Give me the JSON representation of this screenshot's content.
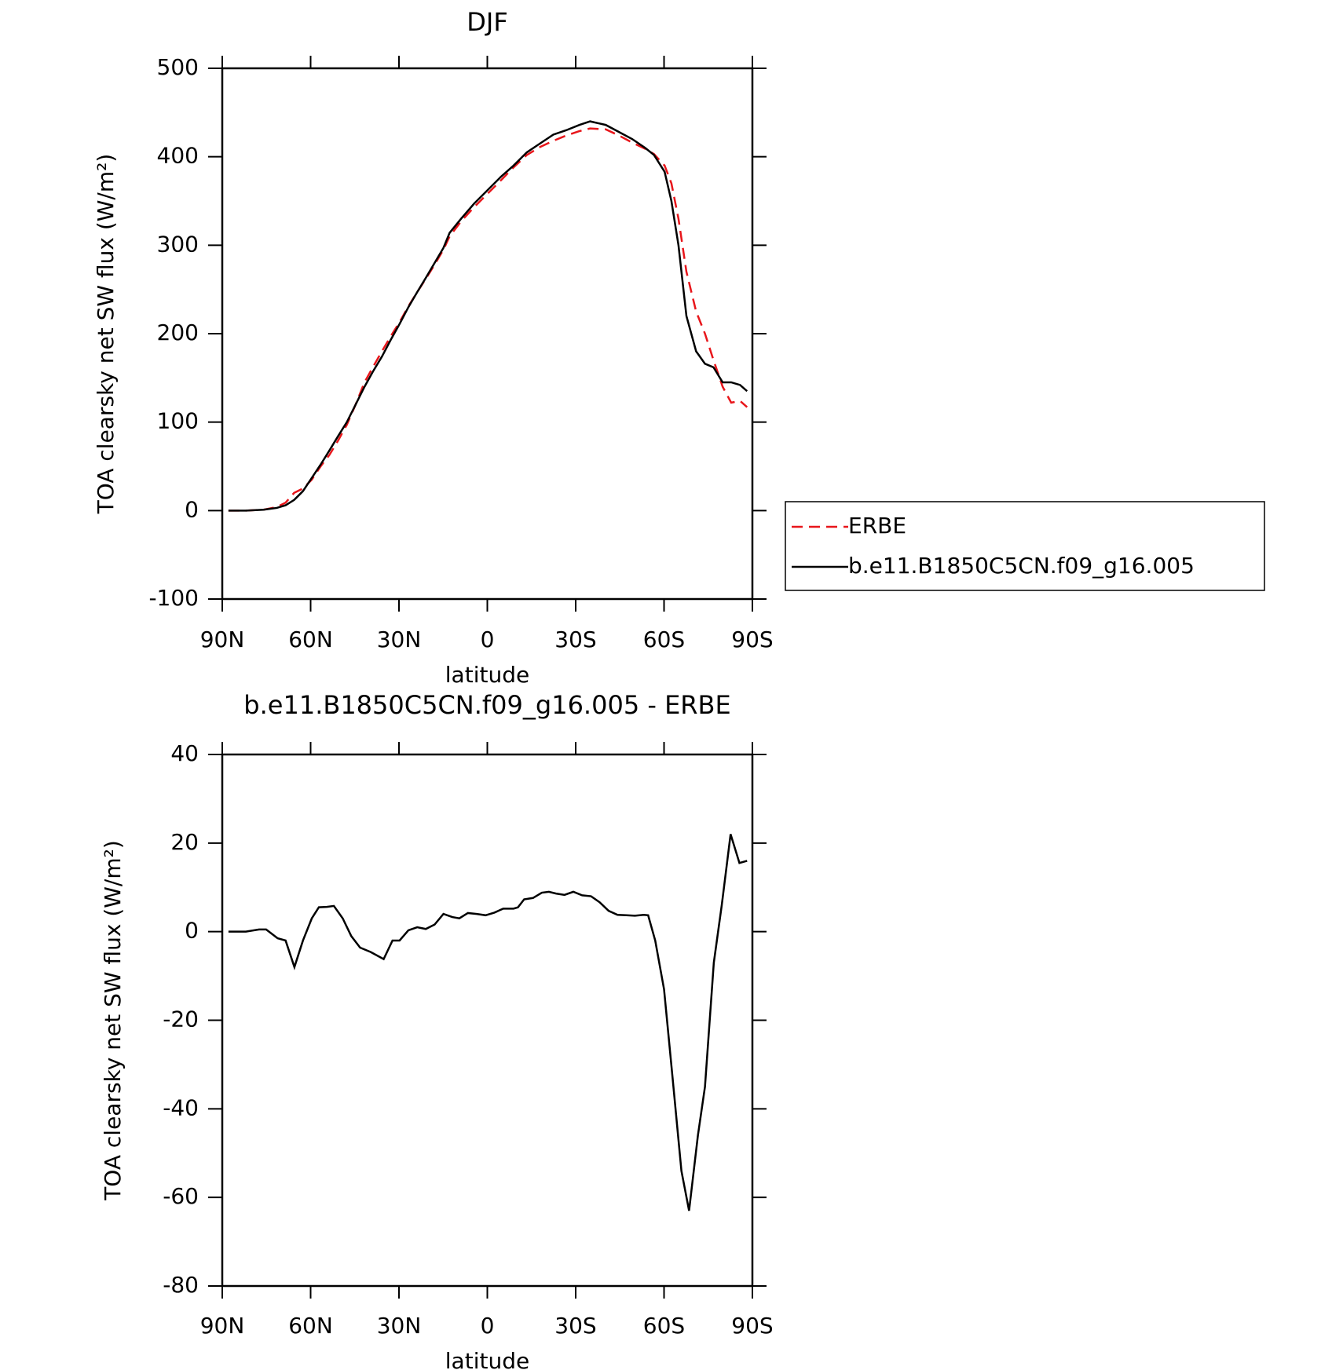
{
  "chart_data": [
    {
      "type": "line",
      "title": "DJF",
      "xlabel": "latitude",
      "ylabel": "TOA clearsky net SW flux (W/m²)",
      "x": [
        87.9,
        82,
        76,
        71.5,
        68.5,
        65.6,
        62.6,
        59.6,
        56.6,
        53.6,
        50.7,
        47.7,
        44.7,
        41.7,
        38.7,
        35.8,
        32.8,
        29.8,
        26.8,
        23.8,
        20.9,
        17.9,
        14.9,
        12.8,
        8.9,
        4.5,
        0,
        -4.5,
        -8.9,
        -13.4,
        -17.9,
        -22.4,
        -26.8,
        -31.3,
        -34.9,
        -40.2,
        -44.7,
        -49.2,
        -53.6,
        -56.6,
        -60.2,
        -62.5,
        -64.9,
        -67.6,
        -70.9,
        -73.9,
        -76.8,
        -79.9,
        -82.8,
        -85.8,
        -88.2
      ],
      "series": [
        {
          "name": "ERBE",
          "color": "#e8161b",
          "dashed": true,
          "values": [
            0,
            0,
            1,
            4,
            9,
            20,
            25,
            35,
            50,
            63,
            79,
            97,
            120,
            145,
            163,
            180,
            197,
            213,
            231,
            247,
            262,
            278,
            295,
            310,
            327,
            343,
            358,
            373,
            388,
            402,
            411,
            418,
            424,
            429,
            432,
            431,
            424,
            416,
            409,
            403,
            390,
            370,
            330,
            270,
            225,
            200,
            170,
            140,
            122,
            124,
            117
          ]
        },
        {
          "name": "b.e11.B1850C5CN.f09_g16.005",
          "color": "#000000",
          "dashed": false,
          "values": [
            0,
            0,
            1,
            3,
            6,
            12,
            22,
            37,
            52,
            68,
            84,
            100,
            120,
            140,
            158,
            174,
            193,
            211,
            230,
            247,
            263,
            280,
            297,
            314,
            330,
            347,
            362,
            377,
            390,
            405,
            415,
            425,
            430,
            436,
            440,
            436,
            428,
            420,
            410,
            402,
            383,
            350,
            300,
            220,
            180,
            166,
            162,
            145,
            145,
            142,
            135
          ]
        }
      ],
      "xlim": [
        90,
        -90
      ],
      "xticks": [
        {
          "value": 90,
          "label": "90N"
        },
        {
          "value": 60,
          "label": "60N"
        },
        {
          "value": 30,
          "label": "30N"
        },
        0,
        {
          "value": -30,
          "label": "30S"
        },
        {
          "value": -60,
          "label": "60S"
        },
        {
          "value": -90,
          "label": "90S"
        }
      ],
      "ylim": [
        -100,
        500
      ],
      "yticks": [
        -100,
        0,
        100,
        200,
        300,
        400,
        500
      ],
      "legend": "right"
    },
    {
      "type": "line",
      "title": "b.e11.B1850C5CN.f09_g16.005 - ERBE",
      "xlabel": "latitude",
      "ylabel": "TOA clearsky net SW flux (W/m²)",
      "x": [
        87.9,
        84.9,
        82.0,
        77.5,
        75.1,
        71.2,
        68.5,
        65.5,
        62.6,
        59.6,
        57.2,
        54.5,
        52.1,
        49.1,
        46.2,
        43.2,
        39.6,
        35.2,
        32.2,
        29.8,
        26.8,
        23.8,
        20.9,
        17.9,
        14.9,
        11.9,
        9.5,
        6.6,
        3.6,
        0.6,
        -2.4,
        -5.4,
        -8.9,
        -10.4,
        -12.5,
        -15.5,
        -18.5,
        -20.9,
        -23.3,
        -26.2,
        -29.2,
        -32.2,
        -35.2,
        -38.2,
        -41.2,
        -44.2,
        -47.2,
        -50.1,
        -53.1,
        -54.6,
        -57.0,
        -60.0,
        -62.9,
        -65.9,
        -68.5,
        -71.5,
        -73.9,
        -76.9,
        -79.6,
        -82.6,
        -85.6,
        -88.2
      ],
      "series": [
        {
          "name": "b.e11.B1850C5CN.f09_g16.005 - ERBE",
          "color": "#000000",
          "dashed": false,
          "values": [
            0,
            0,
            0,
            0.5,
            0.5,
            -1.5,
            -2,
            -8,
            -2,
            3,
            5.5,
            5.6,
            5.8,
            3,
            -1,
            -3.6,
            -4.6,
            -6.2,
            -2,
            -2,
            0.3,
            1,
            0.6,
            1.6,
            4,
            3.3,
            3,
            4.2,
            4,
            3.7,
            4.3,
            5.2,
            5.2,
            5.5,
            7.3,
            7.6,
            8.8,
            9,
            8.6,
            8.3,
            9,
            8.2,
            8,
            6.6,
            4.7,
            3.8,
            3.7,
            3.6,
            3.8,
            3.7,
            -2,
            -13,
            -33,
            -54,
            -63,
            -46,
            -35,
            -7,
            6,
            22,
            15.5,
            16
          ]
        }
      ],
      "xlim": [
        90,
        -90
      ],
      "xticks": [
        {
          "value": 90,
          "label": "90N"
        },
        {
          "value": 60,
          "label": "60N"
        },
        {
          "value": 30,
          "label": "30N"
        },
        0,
        {
          "value": -30,
          "label": "30S"
        },
        {
          "value": -60,
          "label": "60S"
        },
        {
          "value": -90,
          "label": "90S"
        }
      ],
      "ylim": [
        -80,
        40
      ],
      "yticks": [
        -80,
        -60,
        -40,
        -20,
        0,
        20,
        40
      ]
    }
  ]
}
